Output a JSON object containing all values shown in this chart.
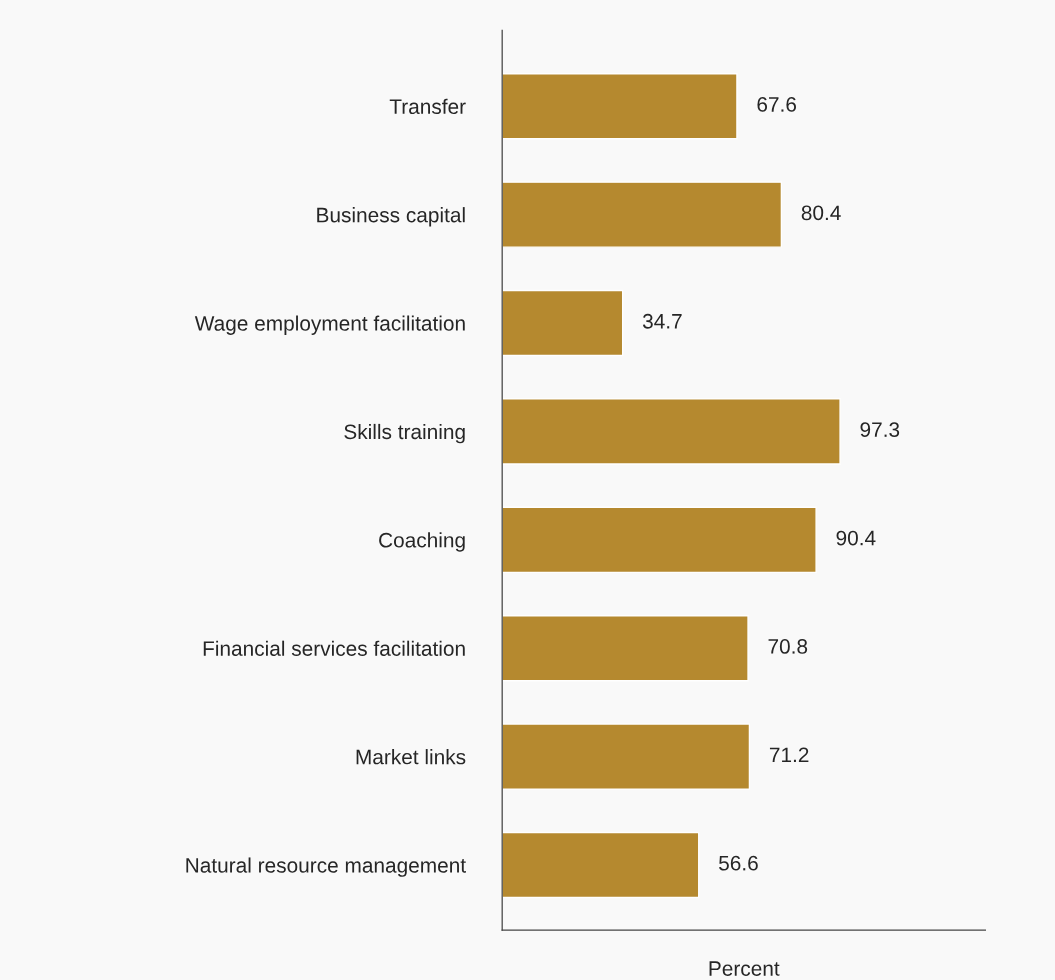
{
  "chart_data": {
    "type": "bar",
    "orientation": "horizontal",
    "xlabel": "Percent",
    "categories": [
      "Transfer",
      "Business capital",
      "Wage employment facilitation",
      "Skills training",
      "Coaching",
      "Financial services facilitation",
      "Market links",
      "Natural resource management"
    ],
    "values": [
      67.6,
      80.4,
      34.7,
      97.3,
      90.4,
      70.8,
      71.2,
      56.6
    ],
    "color": "#b5892f",
    "data_labels": true,
    "tick_labels": "y",
    "grid": false,
    "legend": false
  }
}
